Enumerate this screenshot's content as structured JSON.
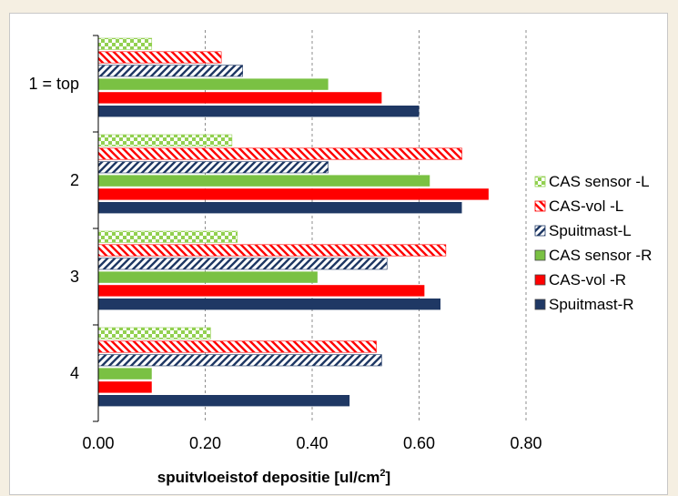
{
  "chart_data": {
    "type": "bar",
    "orientation": "horizontal",
    "categories": [
      "1 = top",
      "2",
      "3",
      "4"
    ],
    "series": [
      {
        "name": "CAS sensor -L",
        "values": [
          0.1,
          0.25,
          0.26,
          0.21
        ],
        "color": "#92d050",
        "pattern": "checker"
      },
      {
        "name": "CAS-vol -L",
        "values": [
          0.23,
          0.68,
          0.65,
          0.52
        ],
        "color": "#ff0000",
        "pattern": "diagonal-down"
      },
      {
        "name": "Spuitmast-L",
        "values": [
          0.27,
          0.43,
          0.54,
          0.53
        ],
        "color": "#1f3864",
        "pattern": "diagonal-up"
      },
      {
        "name": "CAS sensor -R",
        "values": [
          0.43,
          0.62,
          0.41,
          0.1
        ],
        "color": "#7ac143",
        "pattern": "solid"
      },
      {
        "name": "CAS-vol -R",
        "values": [
          0.53,
          0.73,
          0.61,
          0.1
        ],
        "color": "#ff0000",
        "pattern": "solid"
      },
      {
        "name": "Spuitmast-R",
        "values": [
          0.6,
          0.68,
          0.64,
          0.47
        ],
        "color": "#1f3864",
        "pattern": "solid"
      }
    ],
    "xlim": [
      0,
      0.8
    ],
    "xticks": [
      "0.00",
      "0.20",
      "0.40",
      "0.60",
      "0.80"
    ],
    "xtick_values": [
      0,
      0.2,
      0.4,
      0.6,
      0.8
    ],
    "xlabel_main": "spuitvloeistof depositie [ul/cm",
    "xlabel_sup": "2",
    "xlabel_end": "]",
    "grid": "vertical dashed",
    "legend_position": "right"
  }
}
